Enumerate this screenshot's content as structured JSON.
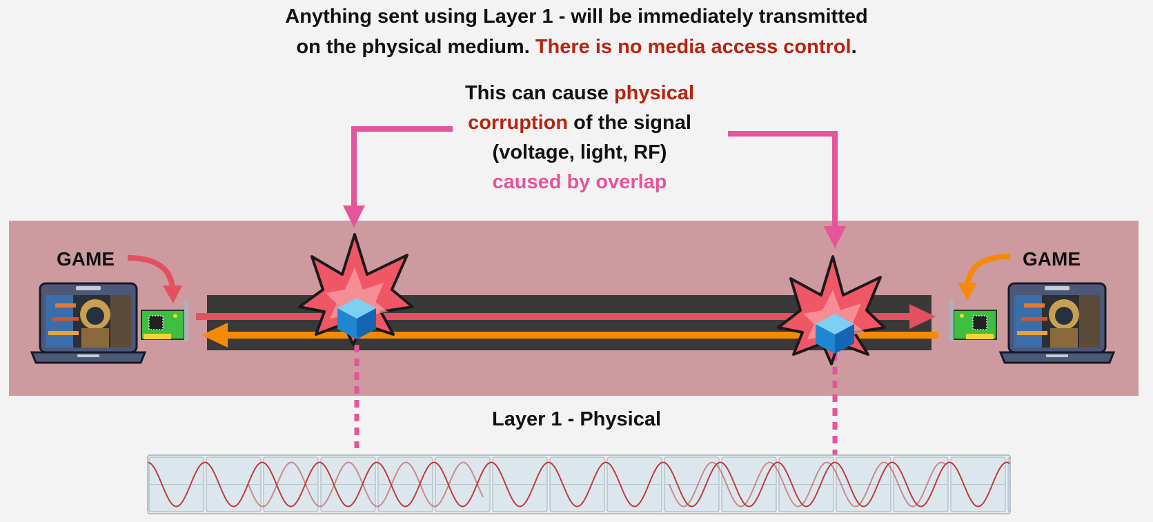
{
  "headline": {
    "line1": "Anything sent using Layer 1 - will be immediately transmitted",
    "line2_prefix": "on the physical medium. ",
    "line2_highlight": "There is no media access control",
    "line2_suffix": "."
  },
  "callout": {
    "part1": "This can cause ",
    "highlight": "physical corruption",
    "part2": " of the signal",
    "line3": "(voltage, light, RF)",
    "line4": "caused by overlap"
  },
  "left_device": {
    "label": "GAME"
  },
  "right_device": {
    "label": "GAME"
  },
  "layer_label": "Layer 1 - Physical",
  "colors": {
    "band": "#cd9aa0",
    "cable": "#393939",
    "arrow_red": "#e3505e",
    "arrow_orange": "#f58a07",
    "pointer_pink": "#e4559b",
    "accent_red": "#b8230f",
    "wave_red": "#c0393b",
    "wave_cell": "#dbe7ec"
  }
}
